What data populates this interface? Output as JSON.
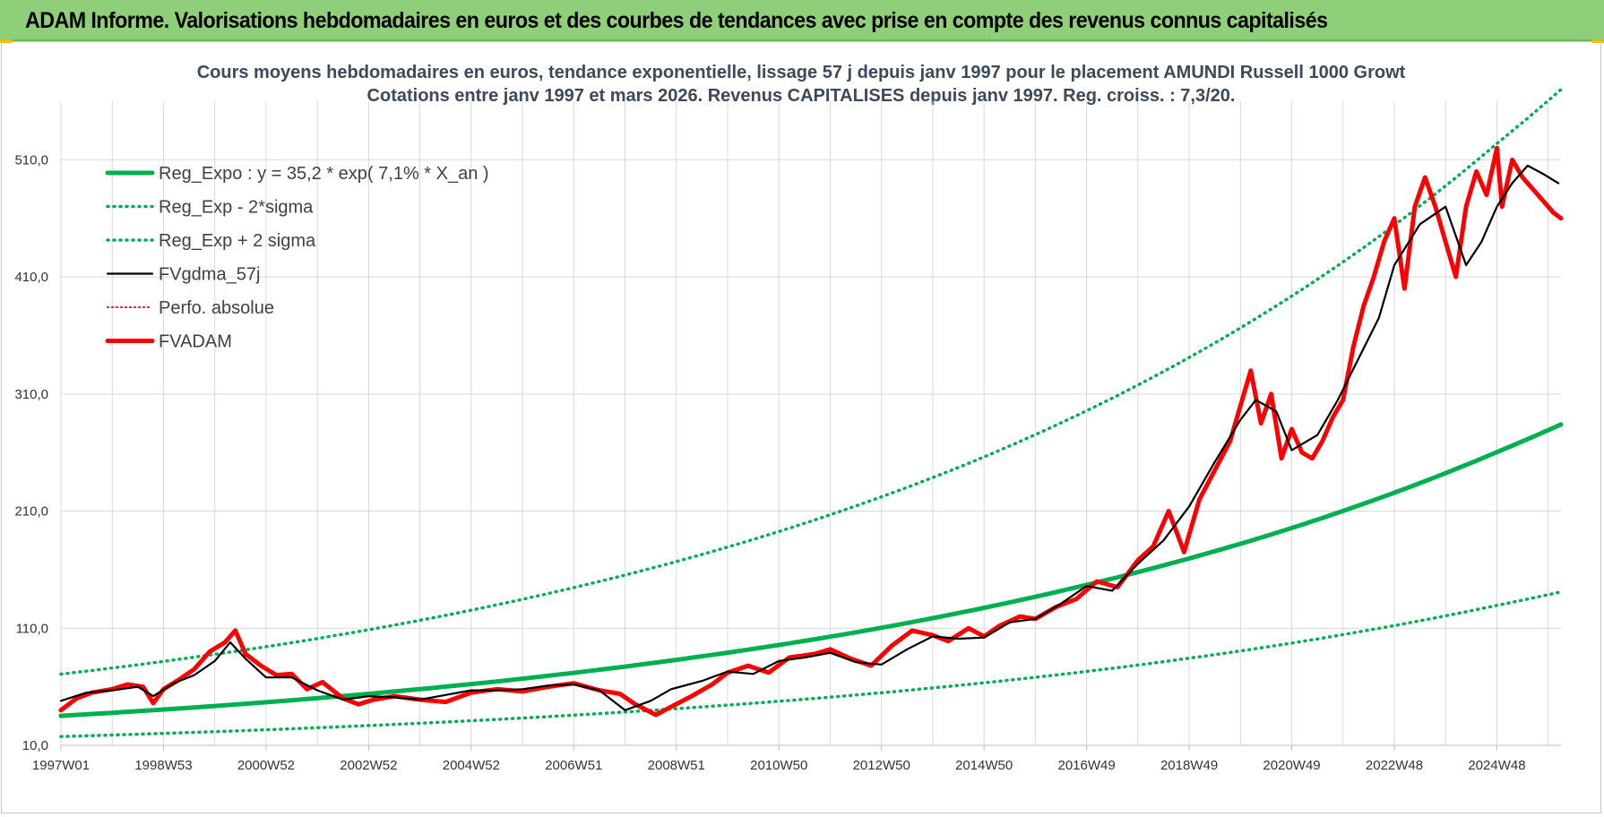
{
  "header": {
    "banner": "ADAM Informe. Valorisations hebdomadaires en euros et des courbes de tendances avec prise en compte des revenus connus capitalisés"
  },
  "colors": {
    "banner_bg": "#8fcf7a",
    "reg_expo": "#00b050",
    "sigma_bands": "#00b050",
    "fvgdma": "#000000",
    "perfo": "#ff0000",
    "fvadam": "#ff0000",
    "grid": "#d9d9d9"
  },
  "chart_data": {
    "type": "line",
    "title": "Cours moyens hebdomadaires en euros, tendance exponentielle, lissage 57 j depuis janv 1997 pour le placement AMUNDI Russell 1000 Growt",
    "subtitle": "Cotations entre janv 1997 et mars 2026. Revenus CAPITALISES depuis janv 1997. Reg. croiss. : 7,3/20.",
    "xlabel": "",
    "ylabel": "",
    "ylim": [
      10,
      560
    ],
    "xlim": [
      1997.0,
      2026.25
    ],
    "grid": true,
    "legend_position": "top-left",
    "yticks": [
      10,
      110,
      210,
      310,
      410,
      510
    ],
    "ytick_labels": [
      "10,0",
      "110,0",
      "210,0",
      "310,0",
      "410,0",
      "510,0"
    ],
    "xticks": [
      1997.0,
      1999.0,
      2001.0,
      2003.0,
      2005.0,
      2007.0,
      2009.0,
      2011.0,
      2013.0,
      2015.0,
      2017.0,
      2019.0,
      2021.0,
      2023.0,
      2025.0
    ],
    "xtick_labels": [
      "1997W01",
      "1998W53",
      "2000W52",
      "2002W52",
      "2004W52",
      "2006W51",
      "2008W51",
      "2010W50",
      "2012W50",
      "2014W50",
      "2016W49",
      "2018W49",
      "2020W49",
      "2022W48",
      "2024W48"
    ],
    "series": [
      {
        "name": "Reg_Expo : y = 35,2 * exp( 7,1% *  X_an )",
        "key": "reg_expo",
        "style": "solid-thick",
        "color": "#00b050",
        "x": [
          1997,
          1999,
          2001,
          2003,
          2005,
          2007,
          2009,
          2011,
          2013,
          2015,
          2017,
          2019,
          2021,
          2023,
          2025,
          2026.25
        ],
        "y": [
          35.2,
          40.6,
          46.8,
          54.0,
          62.3,
          71.9,
          83.0,
          95.7,
          110.4,
          127.4,
          147.0,
          169.6,
          195.6,
          225.7,
          260.4,
          284.0
        ]
      },
      {
        "name": "Reg_Exp - 2*sigma",
        "key": "reg_minus",
        "style": "dotted",
        "color": "#00b050",
        "x": [
          1997,
          1999,
          2001,
          2003,
          2005,
          2007,
          2009,
          2011,
          2013,
          2015,
          2017,
          2019,
          2021,
          2023,
          2025,
          2026.25
        ],
        "y": [
          17.5,
          20.2,
          23.3,
          26.9,
          31.0,
          35.8,
          41.3,
          47.6,
          54.9,
          63.4,
          73.1,
          84.4,
          97.3,
          112.3,
          129.5,
          141.0
        ]
      },
      {
        "name": "Reg_Exp + 2 sigma",
        "key": "reg_plus",
        "style": "dotted",
        "color": "#00b050",
        "x": [
          1997,
          1999,
          2001,
          2003,
          2005,
          2007,
          2009,
          2011,
          2013,
          2015,
          2017,
          2019,
          2021,
          2023,
          2025,
          2026.25
        ],
        "y": [
          70.8,
          81.7,
          94.2,
          108.7,
          125.4,
          144.7,
          166.9,
          192.6,
          222.2,
          256.3,
          295.7,
          341.2,
          393.6,
          454.1,
          523.9,
          570.0
        ]
      },
      {
        "name": "FVgdma_57j",
        "key": "fvgdma",
        "style": "solid",
        "color": "#000000",
        "x": [
          1997.0,
          1997.5,
          1998.0,
          1998.5,
          1998.8,
          1999.2,
          1999.6,
          2000.0,
          2000.3,
          2000.6,
          2001.0,
          2001.5,
          2002.0,
          2002.5,
          2003.0,
          2003.5,
          2004.0,
          2004.5,
          2005.0,
          2005.5,
          2006.0,
          2006.5,
          2007.0,
          2007.5,
          2008.0,
          2008.5,
          2008.9,
          2009.5,
          2010.0,
          2010.5,
          2011.0,
          2011.5,
          2012.0,
          2012.5,
          2013.0,
          2013.5,
          2014.0,
          2014.5,
          2015.0,
          2015.5,
          2016.0,
          2016.5,
          2017.0,
          2017.5,
          2018.0,
          2018.5,
          2019.0,
          2019.5,
          2020.0,
          2020.3,
          2020.7,
          2021.0,
          2021.5,
          2021.9,
          2022.3,
          2022.7,
          2023.0,
          2023.5,
          2024.0,
          2024.4,
          2024.7,
          2025.0,
          2025.3,
          2025.6,
          2025.9,
          2026.2
        ],
        "y": [
          48,
          55,
          57,
          60,
          52,
          63,
          70,
          82,
          98,
          84,
          68,
          68,
          57,
          49,
          52,
          51,
          49,
          53,
          57,
          57,
          58,
          61,
          62,
          57,
          40,
          48,
          58,
          65,
          73,
          71,
          82,
          85,
          89,
          81,
          79,
          92,
          103,
          101,
          102,
          115,
          118,
          131,
          146,
          142,
          165,
          185,
          214,
          252,
          288,
          305,
          295,
          262,
          275,
          305,
          340,
          375,
          420,
          455,
          470,
          420,
          440,
          470,
          490,
          505,
          498,
          490
        ]
      },
      {
        "name": "Perfo. absolue",
        "key": "perfo",
        "style": "dotted-thin",
        "color": "#ff0000",
        "x": [],
        "y": []
      },
      {
        "name": "FVADAM",
        "key": "fvadam",
        "style": "solid-thick",
        "color": "#ff0000",
        "x": [
          1997.0,
          1997.3,
          1997.6,
          1998.0,
          1998.3,
          1998.6,
          1998.8,
          1999.0,
          1999.3,
          1999.6,
          1999.9,
          2000.2,
          2000.4,
          2000.6,
          2000.9,
          2001.2,
          2001.5,
          2001.8,
          2002.1,
          2002.5,
          2002.8,
          2003.1,
          2003.5,
          2004.0,
          2004.5,
          2005.0,
          2005.5,
          2006.0,
          2006.5,
          2007.0,
          2007.5,
          2007.9,
          2008.2,
          2008.6,
          2008.9,
          2009.3,
          2009.7,
          2010.0,
          2010.4,
          2010.8,
          2011.2,
          2011.7,
          2012.0,
          2012.4,
          2012.8,
          2013.2,
          2013.6,
          2014.0,
          2014.3,
          2014.7,
          2015.0,
          2015.3,
          2015.7,
          2016.0,
          2016.4,
          2016.8,
          2017.2,
          2017.6,
          2018.0,
          2018.3,
          2018.6,
          2018.9,
          2019.2,
          2019.5,
          2019.8,
          2020.0,
          2020.2,
          2020.4,
          2020.6,
          2020.8,
          2021.0,
          2021.2,
          2021.4,
          2021.6,
          2021.8,
          2022.0,
          2022.2,
          2022.4,
          2022.6,
          2022.8,
          2023.0,
          2023.2,
          2023.4,
          2023.6,
          2023.8,
          2024.0,
          2024.2,
          2024.4,
          2024.6,
          2024.8,
          2025.0,
          2025.1,
          2025.3,
          2025.5,
          2025.7,
          2025.9,
          2026.1,
          2026.25
        ],
        "y": [
          40,
          50,
          55,
          58,
          62,
          60,
          46,
          58,
          66,
          75,
          90,
          98,
          108,
          88,
          78,
          70,
          71,
          58,
          64,
          50,
          45,
          49,
          52,
          49,
          47,
          55,
          58,
          56,
          60,
          63,
          57,
          54,
          45,
          36,
          43,
          52,
          62,
          72,
          78,
          72,
          85,
          88,
          92,
          84,
          78,
          95,
          108,
          104,
          99,
          110,
          103,
          112,
          120,
          118,
          128,
          135,
          150,
          145,
          168,
          180,
          210,
          175,
          220,
          245,
          270,
          300,
          330,
          285,
          310,
          255,
          280,
          260,
          255,
          270,
          290,
          305,
          350,
          385,
          410,
          440,
          460,
          400,
          470,
          495,
          470,
          440,
          410,
          470,
          500,
          480,
          520,
          470,
          510,
          495,
          485,
          475,
          465,
          460
        ]
      }
    ]
  }
}
